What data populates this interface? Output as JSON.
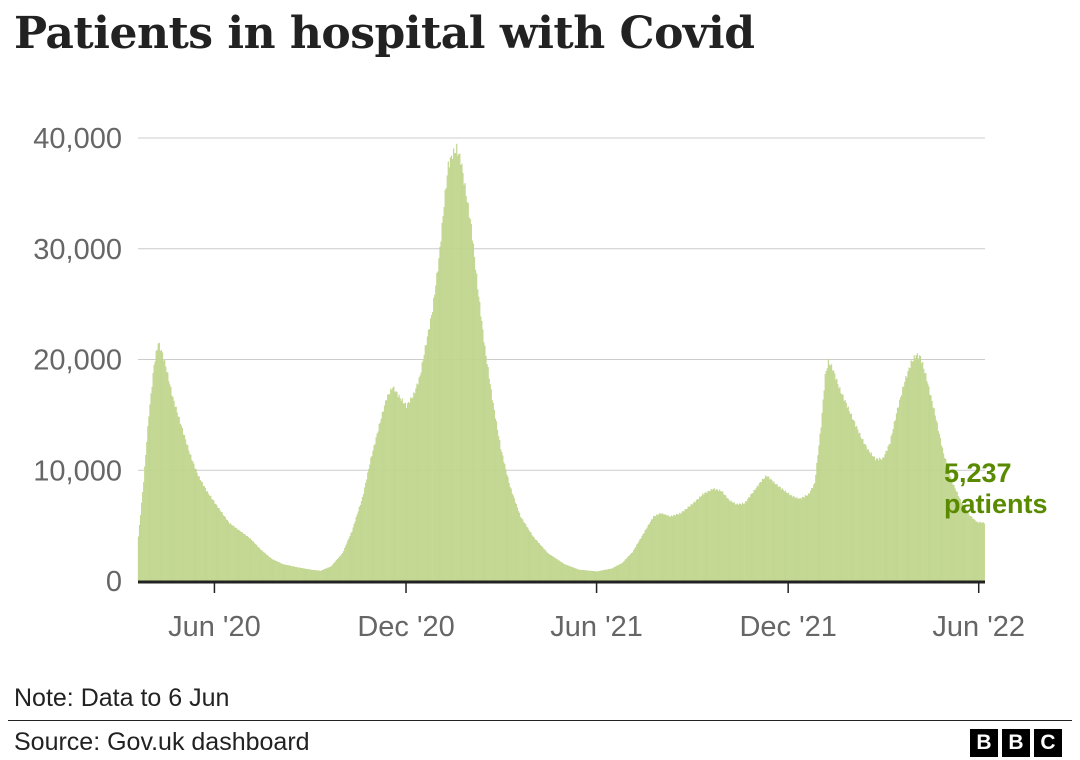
{
  "title": "Patients in hospital with Covid",
  "note": "Note: Data to 6 Jun",
  "source": "Source: Gov.uk dashboard",
  "logo": [
    "B",
    "B",
    "C"
  ],
  "colors": {
    "bars": "#c8dc9a",
    "bar_outline": "#b3cc7a",
    "annotation": "#5a8a00",
    "axis": "#222222",
    "grid": "#cccccc",
    "tick_text": "#666666"
  },
  "chart_data": {
    "type": "bar",
    "title": "Patients in hospital with Covid",
    "xlabel": "",
    "ylabel": "",
    "ylim": [
      0,
      40000
    ],
    "yticks": [
      0,
      10000,
      20000,
      30000,
      40000
    ],
    "ytick_labels": [
      "0",
      "10,000",
      "20,000",
      "30,000",
      "40,000"
    ],
    "x_range": [
      "2020-03-20",
      "2022-06-06"
    ],
    "xticks": [
      {
        "date": "2020-06-01",
        "label": "Jun '20"
      },
      {
        "date": "2020-12-01",
        "label": "Dec '20"
      },
      {
        "date": "2021-06-01",
        "label": "Jun '21"
      },
      {
        "date": "2021-12-01",
        "label": "Dec '21"
      },
      {
        "date": "2022-06-01",
        "label": "Jun '22"
      }
    ],
    "grid": "horizontal",
    "frequency": "daily",
    "series": [
      {
        "name": "Patients in hospital",
        "points": [
          [
            "2020-03-20",
            4000
          ],
          [
            "2020-03-25",
            9000
          ],
          [
            "2020-03-30",
            15000
          ],
          [
            "2020-04-04",
            19500
          ],
          [
            "2020-04-08",
            21500
          ],
          [
            "2020-04-12",
            20500
          ],
          [
            "2020-04-16",
            19000
          ],
          [
            "2020-04-22",
            16500
          ],
          [
            "2020-04-30",
            14000
          ],
          [
            "2020-05-08",
            11500
          ],
          [
            "2020-05-16",
            9500
          ],
          [
            "2020-05-25",
            8000
          ],
          [
            "2020-06-05",
            6500
          ],
          [
            "2020-06-15",
            5200
          ],
          [
            "2020-06-25",
            4500
          ],
          [
            "2020-07-05",
            3800
          ],
          [
            "2020-07-15",
            2800
          ],
          [
            "2020-07-25",
            2000
          ],
          [
            "2020-08-05",
            1500
          ],
          [
            "2020-08-20",
            1200
          ],
          [
            "2020-09-01",
            1000
          ],
          [
            "2020-09-10",
            900
          ],
          [
            "2020-09-20",
            1300
          ],
          [
            "2020-10-01",
            2500
          ],
          [
            "2020-10-10",
            4500
          ],
          [
            "2020-10-20",
            7500
          ],
          [
            "2020-10-28",
            11000
          ],
          [
            "2020-11-05",
            14000
          ],
          [
            "2020-11-12",
            16500
          ],
          [
            "2020-11-18",
            17500
          ],
          [
            "2020-11-25",
            16500
          ],
          [
            "2020-12-01",
            15800
          ],
          [
            "2020-12-08",
            16800
          ],
          [
            "2020-12-14",
            18500
          ],
          [
            "2020-12-20",
            21500
          ],
          [
            "2020-12-26",
            24500
          ],
          [
            "2021-01-01",
            29000
          ],
          [
            "2021-01-06",
            34000
          ],
          [
            "2021-01-10",
            37500
          ],
          [
            "2021-01-14",
            38500
          ],
          [
            "2021-01-18",
            39000
          ],
          [
            "2021-01-22",
            38000
          ],
          [
            "2021-01-26",
            35500
          ],
          [
            "2021-02-01",
            32000
          ],
          [
            "2021-02-07",
            26500
          ],
          [
            "2021-02-14",
            21000
          ],
          [
            "2021-02-21",
            16500
          ],
          [
            "2021-03-01",
            12000
          ],
          [
            "2021-03-10",
            8500
          ],
          [
            "2021-03-20",
            5800
          ],
          [
            "2021-04-01",
            4000
          ],
          [
            "2021-04-15",
            2500
          ],
          [
            "2021-05-01",
            1500
          ],
          [
            "2021-05-15",
            1000
          ],
          [
            "2021-06-01",
            850
          ],
          [
            "2021-06-15",
            1100
          ],
          [
            "2021-06-25",
            1600
          ],
          [
            "2021-07-05",
            2600
          ],
          [
            "2021-07-15",
            4200
          ],
          [
            "2021-07-25",
            5800
          ],
          [
            "2021-08-01",
            6100
          ],
          [
            "2021-08-10",
            5800
          ],
          [
            "2021-08-20",
            6100
          ],
          [
            "2021-09-01",
            7000
          ],
          [
            "2021-09-10",
            7800
          ],
          [
            "2021-09-20",
            8300
          ],
          [
            "2021-09-28",
            8100
          ],
          [
            "2021-10-05",
            7300
          ],
          [
            "2021-10-12",
            6900
          ],
          [
            "2021-10-20",
            7000
          ],
          [
            "2021-10-28",
            8000
          ],
          [
            "2021-11-05",
            9000
          ],
          [
            "2021-11-10",
            9500
          ],
          [
            "2021-11-18",
            8800
          ],
          [
            "2021-11-26",
            8200
          ],
          [
            "2021-12-05",
            7600
          ],
          [
            "2021-12-12",
            7400
          ],
          [
            "2021-12-20",
            7800
          ],
          [
            "2021-12-26",
            8800
          ],
          [
            "2022-01-01",
            14000
          ],
          [
            "2022-01-05",
            18500
          ],
          [
            "2022-01-08",
            19800
          ],
          [
            "2022-01-12",
            19200
          ],
          [
            "2022-01-18",
            17500
          ],
          [
            "2022-01-25",
            16000
          ],
          [
            "2022-02-01",
            14500
          ],
          [
            "2022-02-08",
            13000
          ],
          [
            "2022-02-15",
            11800
          ],
          [
            "2022-02-22",
            11000
          ],
          [
            "2022-03-01",
            11000
          ],
          [
            "2022-03-08",
            12500
          ],
          [
            "2022-03-15",
            15500
          ],
          [
            "2022-03-22",
            18000
          ],
          [
            "2022-03-28",
            19700
          ],
          [
            "2022-04-02",
            20400
          ],
          [
            "2022-04-06",
            20200
          ],
          [
            "2022-04-12",
            18200
          ],
          [
            "2022-04-20",
            15000
          ],
          [
            "2022-04-28",
            11500
          ],
          [
            "2022-05-06",
            9000
          ],
          [
            "2022-05-14",
            7300
          ],
          [
            "2022-05-22",
            6000
          ],
          [
            "2022-05-30",
            5300
          ],
          [
            "2022-06-06",
            5237
          ]
        ]
      }
    ],
    "annotation": {
      "value": "5,237",
      "label": "patients"
    }
  }
}
